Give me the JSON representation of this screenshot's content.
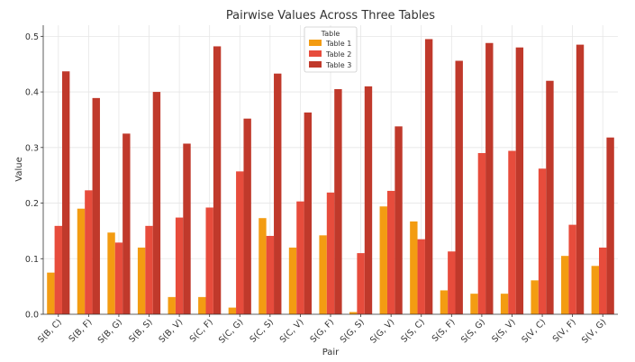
{
  "chart_data": {
    "type": "bar",
    "title": "Pairwise Values Across Three Tables",
    "xlabel": "Pair",
    "ylabel": "Value",
    "ylim": [
      0,
      0.52
    ],
    "yticks": [
      "0.0",
      "0.1",
      "0.2",
      "0.3",
      "0.4",
      "0.5"
    ],
    "ytick_values": [
      0,
      0.1,
      0.2,
      0.3,
      0.4,
      0.5
    ],
    "grid": true,
    "legend": {
      "title": "Table",
      "position": "top-center"
    },
    "categories": [
      "S(B, C)",
      "S(B, F)",
      "S(B, G)",
      "S(B, S)",
      "S(B, V)",
      "S(C, F)",
      "S(C, G)",
      "S(C, S)",
      "S(C, V)",
      "S(G, F)",
      "S(G, S)",
      "S(G, V)",
      "S(S, C)",
      "S(S, F)",
      "S(S, G)",
      "S(S, V)",
      "S(V, C)",
      "S(V, F)",
      "S(V, G)"
    ],
    "series": [
      {
        "name": "Table 1",
        "color": "#f39c12",
        "values": [
          0.075,
          0.19,
          0.147,
          0.12,
          0.031,
          0.031,
          0.012,
          0.173,
          0.12,
          0.142,
          0.004,
          0.194,
          0.167,
          0.043,
          0.037,
          0.037,
          0.061,
          0.105,
          0.087
        ]
      },
      {
        "name": "Table 2",
        "color": "#e74c3c",
        "values": [
          0.159,
          0.223,
          0.129,
          0.159,
          0.174,
          0.192,
          0.257,
          0.141,
          0.203,
          0.219,
          0.11,
          0.222,
          0.135,
          0.113,
          0.29,
          0.294,
          0.262,
          0.161,
          0.12
        ]
      },
      {
        "name": "Table 3",
        "color": "#c0392b",
        "values": [
          0.437,
          0.389,
          0.325,
          0.4,
          0.307,
          0.482,
          0.352,
          0.433,
          0.363,
          0.405,
          0.41,
          0.338,
          0.495,
          0.456,
          0.488,
          0.48,
          0.42,
          0.485,
          0.318
        ]
      }
    ]
  }
}
